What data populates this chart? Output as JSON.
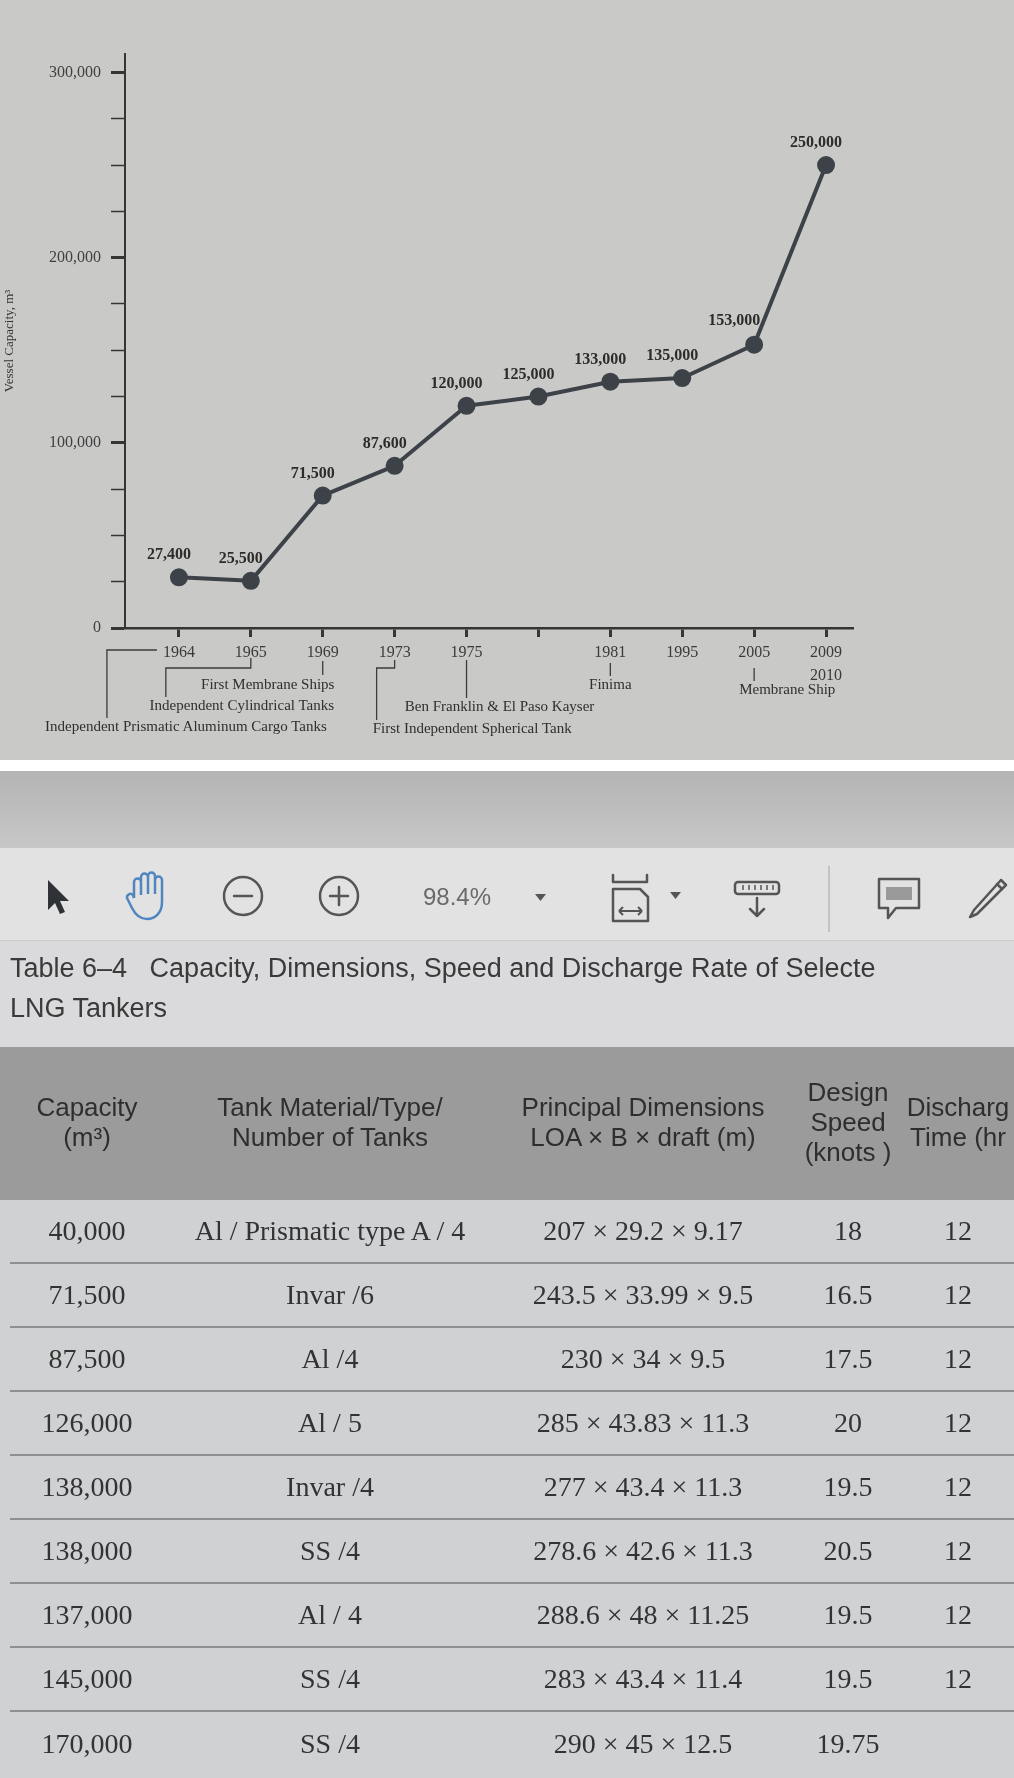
{
  "chart_data": [
    {
      "type": "line",
      "ylabel": "Vessel Capacity, m³",
      "categories": [
        "1964",
        "1965",
        "1969",
        "1973",
        "1975",
        null,
        "1981",
        "1995",
        "2005",
        "2009\n2010"
      ],
      "values": [
        27400,
        25500,
        71500,
        87600,
        120000,
        125000,
        133000,
        135000,
        153000,
        250000
      ],
      "value_labels": [
        "27,400",
        "25,500",
        "71,500",
        "87,600",
        "120,000",
        "125,000",
        "133,000",
        "135,000",
        "153,000",
        "250,000"
      ],
      "color": "#3d4249",
      "marker": "circle",
      "ylim": [
        0,
        310000
      ],
      "yticks": [
        0,
        {
          "value": 25000,
          "label": null
        },
        {
          "value": 50000,
          "label": null
        },
        {
          "value": 75000,
          "label": null
        },
        {
          "value": 100000,
          "label": "100,000"
        },
        {
          "value": 125000,
          "label": null
        },
        {
          "value": 150000,
          "label": null
        },
        {
          "value": 175000,
          "label": null
        },
        {
          "value": 200000,
          "label": "200,000"
        },
        {
          "value": 225000,
          "label": null
        },
        {
          "value": 250000,
          "label": null
        },
        {
          "value": 275000,
          "label": null
        },
        {
          "value": 300000,
          "label": "300,000"
        }
      ],
      "annotations": [
        "First Membrane Ships",
        "Independent Cylindrical Tanks",
        "Independent Prismatic Aluminum Cargo Tanks",
        "Ben Franklin & El Paso Kayser",
        "First Independent Spherical Tank",
        "Finima",
        "Membrane Ship"
      ]
    },
    {
      "type": "other",
      "title": "Table 6–4   Capacity, Dimensions, Speed and Discharge Rate of Selecte\nLNG Tankers",
      "annotations": [
        "98.4%"
      ],
      "categories": [
        "Capacity\n(m³)",
        "Tank Material/Type/\nNumber of Tanks",
        "Principal Dimensions\nLOA × B × draft (m)",
        "Design\nSpeed\n(knots )",
        "Discharg\nTime (hr"
      ],
      "cell_labels": [
        [
          "40,000",
          "Al / Prismatic type A / 4",
          "207 × 29.2 × 9.17",
          "18",
          "12"
        ],
        [
          "71,500",
          "Invar /6",
          "243.5 × 33.99 × 9.5",
          "16.5",
          "12"
        ],
        [
          "87,500",
          "Al /4",
          "230 × 34 × 9.5",
          "17.5",
          "12"
        ],
        [
          "126,000",
          "Al / 5",
          "285 × 43.83 × 11.3",
          "20",
          "12"
        ],
        [
          "138,000",
          "Invar /4",
          "277 × 43.4 × 11.3",
          "19.5",
          "12"
        ],
        [
          "138,000",
          "SS /4",
          "278.6 × 42.6 × 11.3",
          "20.5",
          "12"
        ],
        [
          "137,000",
          "Al / 4",
          "288.6 × 48 × 11.25",
          "19.5",
          "12"
        ],
        [
          "145,000",
          "SS /4",
          "283 × 43.4 × 11.4",
          "19.5",
          "12"
        ],
        [
          "170,000",
          "SS /4",
          "290 × 45 × 12.5",
          "19.75",
          null
        ]
      ]
    }
  ]
}
